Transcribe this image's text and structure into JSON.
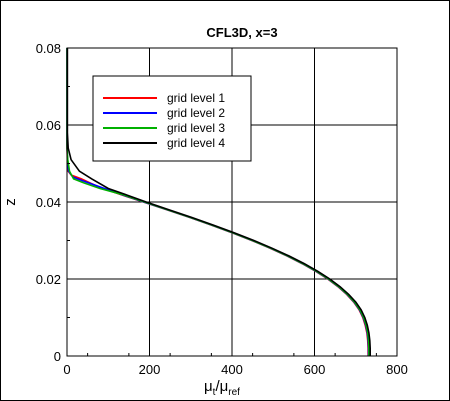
{
  "chart_data": {
    "type": "line",
    "title": "CFL3D, x=3",
    "xlabel": {
      "base": "μ",
      "base_sub": "t",
      "sep": "/",
      "denom": "μ",
      "denom_sub": "ref"
    },
    "ylabel": "z",
    "xlim": [
      0,
      800
    ],
    "ylim": [
      0,
      0.08
    ],
    "x_ticks": [
      0,
      200,
      400,
      600,
      800
    ],
    "x_tick_labels": [
      "0",
      "200",
      "400",
      "600",
      "800"
    ],
    "y_ticks": [
      0,
      0.02,
      0.04,
      0.06,
      0.08
    ],
    "y_tick_labels": [
      "0",
      "0.02",
      "0.04",
      "0.06",
      "0.08"
    ],
    "grid": true,
    "legend": "upper-left",
    "series": [
      {
        "name": "grid level 1",
        "color": "#ff0000",
        "points": [
          [
            730,
            0
          ],
          [
            730,
            0.002
          ],
          [
            729,
            0.004
          ],
          [
            727,
            0.006
          ],
          [
            723,
            0.008
          ],
          [
            717,
            0.01
          ],
          [
            708,
            0.012
          ],
          [
            695,
            0.014
          ],
          [
            678,
            0.016
          ],
          [
            657,
            0.018
          ],
          [
            632,
            0.02
          ],
          [
            603,
            0.022
          ],
          [
            570,
            0.024
          ],
          [
            533,
            0.026
          ],
          [
            492,
            0.028
          ],
          [
            448,
            0.03
          ],
          [
            400,
            0.032
          ],
          [
            350,
            0.034
          ],
          [
            297,
            0.036
          ],
          [
            242,
            0.038
          ],
          [
            185,
            0.04
          ],
          [
            128,
            0.042
          ],
          [
            75,
            0.044
          ],
          [
            35,
            0.046
          ],
          [
            10,
            0.047
          ],
          [
            3,
            0.048
          ],
          [
            1,
            0.05
          ],
          [
            0,
            0.055
          ],
          [
            0,
            0.065
          ],
          [
            0,
            0.08
          ]
        ]
      },
      {
        "name": "grid level 2",
        "color": "#0000ff",
        "points": [
          [
            731,
            0
          ],
          [
            731,
            0.002
          ],
          [
            730,
            0.004
          ],
          [
            728,
            0.006
          ],
          [
            724,
            0.008
          ],
          [
            718,
            0.01
          ],
          [
            709,
            0.012
          ],
          [
            696,
            0.014
          ],
          [
            679,
            0.016
          ],
          [
            658,
            0.018
          ],
          [
            633,
            0.02
          ],
          [
            604,
            0.022
          ],
          [
            571,
            0.024
          ],
          [
            534,
            0.026
          ],
          [
            493,
            0.028
          ],
          [
            449,
            0.03
          ],
          [
            401,
            0.032
          ],
          [
            351,
            0.034
          ],
          [
            298,
            0.036
          ],
          [
            243,
            0.038
          ],
          [
            186,
            0.04
          ],
          [
            130,
            0.042
          ],
          [
            78,
            0.044
          ],
          [
            38,
            0.0455
          ],
          [
            14,
            0.0465
          ],
          [
            4,
            0.048
          ],
          [
            1,
            0.051
          ],
          [
            0,
            0.056
          ],
          [
            0,
            0.065
          ],
          [
            0,
            0.08
          ]
        ]
      },
      {
        "name": "grid level 3",
        "color": "#00b000",
        "points": [
          [
            732,
            0
          ],
          [
            732,
            0.002
          ],
          [
            731,
            0.004
          ],
          [
            729,
            0.006
          ],
          [
            725,
            0.008
          ],
          [
            719,
            0.01
          ],
          [
            710,
            0.012
          ],
          [
            697,
            0.014
          ],
          [
            680,
            0.016
          ],
          [
            659,
            0.018
          ],
          [
            634,
            0.02
          ],
          [
            605,
            0.022
          ],
          [
            572,
            0.024
          ],
          [
            535,
            0.026
          ],
          [
            494,
            0.028
          ],
          [
            450,
            0.03
          ],
          [
            402,
            0.032
          ],
          [
            352,
            0.034
          ],
          [
            299,
            0.036
          ],
          [
            244,
            0.038
          ],
          [
            188,
            0.04
          ],
          [
            132,
            0.042
          ],
          [
            80,
            0.0435
          ],
          [
            40,
            0.045
          ],
          [
            16,
            0.046
          ],
          [
            6,
            0.048
          ],
          [
            2,
            0.051
          ],
          [
            0,
            0.054
          ],
          [
            0,
            0.065
          ],
          [
            0,
            0.08
          ]
        ]
      },
      {
        "name": "grid level 4",
        "color": "#000000",
        "points": [
          [
            735,
            0
          ],
          [
            735,
            0.002
          ],
          [
            734,
            0.004
          ],
          [
            732,
            0.006
          ],
          [
            728,
            0.008
          ],
          [
            722,
            0.01
          ],
          [
            713,
            0.012
          ],
          [
            700,
            0.014
          ],
          [
            683,
            0.016
          ],
          [
            662,
            0.018
          ],
          [
            637,
            0.02
          ],
          [
            608,
            0.022
          ],
          [
            575,
            0.024
          ],
          [
            538,
            0.026
          ],
          [
            497,
            0.028
          ],
          [
            453,
            0.03
          ],
          [
            405,
            0.032
          ],
          [
            355,
            0.034
          ],
          [
            302,
            0.036
          ],
          [
            247,
            0.038
          ],
          [
            192,
            0.04
          ],
          [
            140,
            0.042
          ],
          [
            100,
            0.0435
          ],
          [
            60,
            0.046
          ],
          [
            30,
            0.048
          ],
          [
            10,
            0.051
          ],
          [
            3,
            0.054
          ],
          [
            1,
            0.058
          ],
          [
            1,
            0.065
          ],
          [
            1,
            0.08
          ]
        ]
      }
    ]
  }
}
